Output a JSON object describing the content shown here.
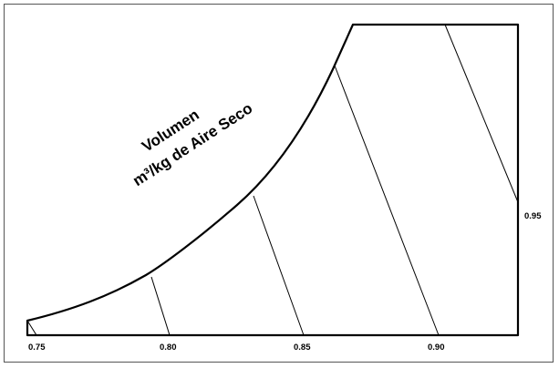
{
  "chart_data": {
    "type": "diagram",
    "title": "Volumen",
    "subtitle": "m³/kg de Aire Seco",
    "lines": [
      {
        "value": 0.75,
        "label": "0.75"
      },
      {
        "value": 0.8,
        "label": "0.80"
      },
      {
        "value": 0.85,
        "label": "0.85"
      },
      {
        "value": 0.9,
        "label": "0.90"
      },
      {
        "value": 0.95,
        "label": "0.95"
      }
    ],
    "colors": {
      "line": "#000000",
      "frame": "#555555"
    }
  }
}
